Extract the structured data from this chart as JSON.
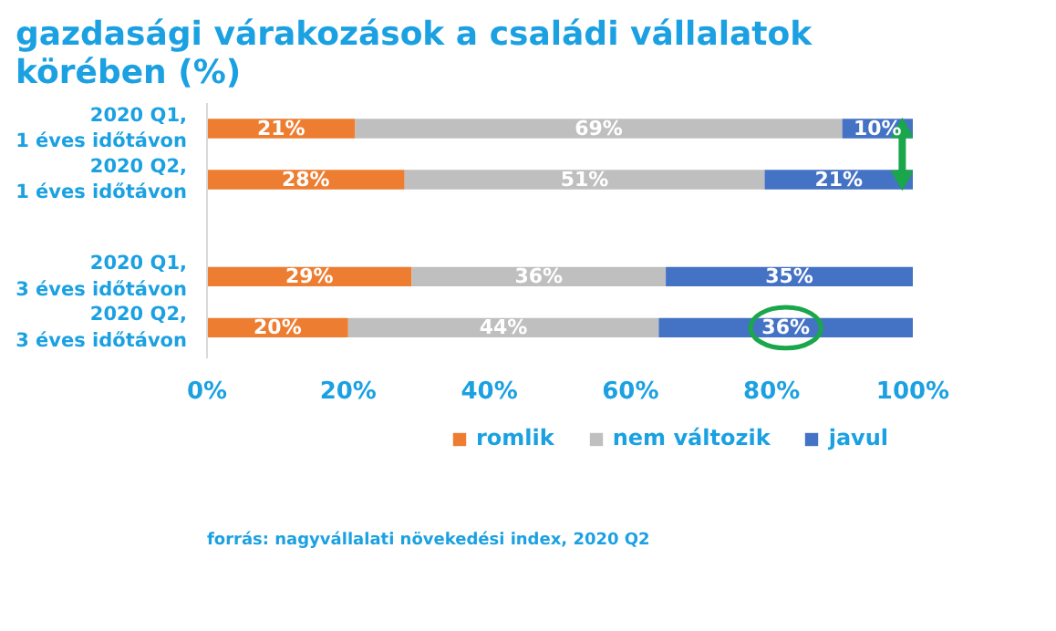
{
  "chart_data": {
    "type": "bar",
    "orientation": "horizontal",
    "stacked": true,
    "title": "gazdasági várakozások a családi vállalatok körében (%)",
    "categories": [
      "2020 Q1, 1 éves időtávon",
      "2020 Q2, 1 éves időtávon",
      "2020 Q1, 3 éves időtávon",
      "2020 Q2, 3 éves időtávon"
    ],
    "series": [
      {
        "name": "romlik",
        "color": "#ed7d31",
        "values": [
          21,
          28,
          29,
          20
        ]
      },
      {
        "name": "nem változik",
        "color": "#bfbfbf",
        "values": [
          69,
          51,
          36,
          44
        ]
      },
      {
        "name": "javul",
        "color": "#4472c4",
        "values": [
          10,
          21,
          35,
          36
        ]
      }
    ],
    "xlim": [
      0,
      100
    ],
    "xticks": [
      {
        "value": 0,
        "label": "0%"
      },
      {
        "value": 20,
        "label": "20%"
      },
      {
        "value": 40,
        "label": "40%"
      },
      {
        "value": 60,
        "label": "60%"
      },
      {
        "value": 80,
        "label": "80%"
      },
      {
        "value": 100,
        "label": "100%"
      }
    ],
    "value_labels": [
      [
        "21%",
        "28%",
        "29%",
        "20%"
      ],
      [
        "69%",
        "51%",
        "36%",
        "44%"
      ],
      [
        "10%",
        "21%",
        "35%",
        "36%"
      ]
    ],
    "grid": false,
    "legend": "bottom",
    "annotations": [
      "forrás: nagyvállalati növekedési index, 2020 Q2"
    ]
  }
}
